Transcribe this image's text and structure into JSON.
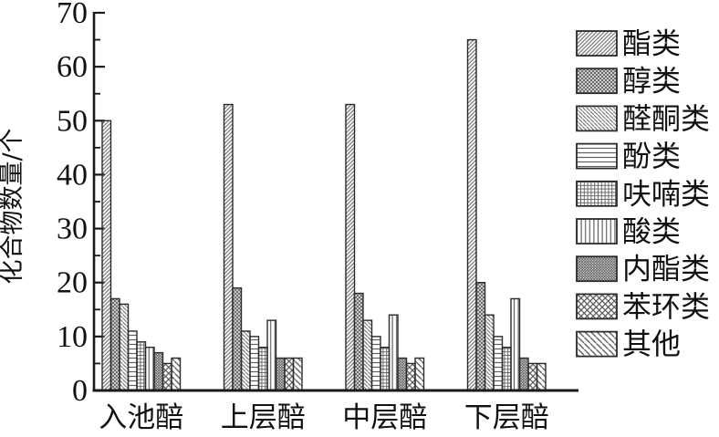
{
  "chart_data": {
    "type": "bar",
    "title": "",
    "xlabel": "",
    "ylabel": "化合物数量/个",
    "ylim": [
      0,
      70
    ],
    "y_ticks": [
      "0",
      "10",
      "20",
      "30",
      "40",
      "50",
      "60",
      "70"
    ],
    "minor_tick_step": 5,
    "grid": false,
    "legend_position": "right",
    "categories": [
      "入池醅",
      "上层醅",
      "中层醅",
      "下层醅"
    ],
    "series": [
      {
        "name": "酯类",
        "pattern": "diagonal-forward-hatch",
        "values": [
          50,
          53,
          53,
          65
        ]
      },
      {
        "name": "醇类",
        "pattern": "dense-diamond-dots",
        "values": [
          17,
          19,
          18,
          20
        ]
      },
      {
        "name": "醛酮类",
        "pattern": "diagonal-backward-hatch",
        "values": [
          16,
          11,
          13,
          14
        ]
      },
      {
        "name": "酚类",
        "pattern": "horizontal-lines",
        "values": [
          11,
          10,
          10,
          10
        ]
      },
      {
        "name": "呋喃类",
        "pattern": "fine-grid",
        "values": [
          9,
          8,
          8,
          8
        ]
      },
      {
        "name": "酸类",
        "pattern": "vertical-lines",
        "values": [
          8,
          13,
          14,
          17
        ]
      },
      {
        "name": "内酯类",
        "pattern": "fine-crosshatch",
        "values": [
          7,
          6,
          6,
          6
        ]
      },
      {
        "name": "苯环类",
        "pattern": "diamond-lattice",
        "values": [
          5,
          6,
          5,
          5
        ]
      },
      {
        "name": "其他",
        "pattern": "coarse-backward-hatch",
        "values": [
          6,
          6,
          6,
          5
        ]
      }
    ]
  },
  "colors": {
    "background": "#ffffff",
    "axis": "#1a1a1a",
    "bar_border": "#2b2b2b",
    "hatch": "#6f6f6f",
    "text": "#111111"
  }
}
